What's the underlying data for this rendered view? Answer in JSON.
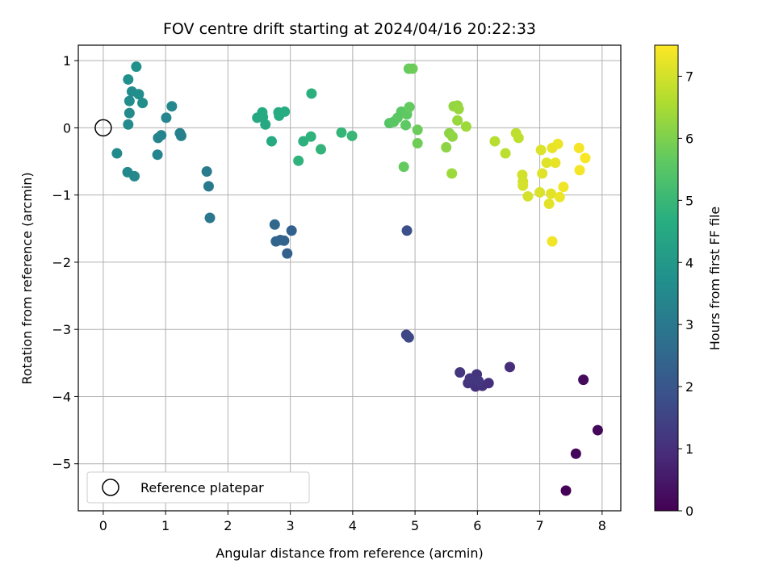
{
  "chart_data": {
    "type": "scatter",
    "title": "FOV centre drift starting at 2024/04/16 20:22:33",
    "xlabel": "Angular distance from reference (arcmin)",
    "ylabel": "Rotation from reference (arcmin)",
    "xlim": [
      -0.4,
      8.3
    ],
    "ylim": [
      -5.7,
      1.23
    ],
    "xticks": [
      0,
      1,
      2,
      3,
      4,
      5,
      6,
      7,
      8
    ],
    "yticks": [
      1,
      0,
      -1,
      -2,
      -3,
      -4,
      -5
    ],
    "xtick_labels": [
      "0",
      "1",
      "2",
      "3",
      "4",
      "5",
      "6",
      "7",
      "8"
    ],
    "ytick_labels": [
      "1",
      "0",
      "−1",
      "−2",
      "−3",
      "−4",
      "−5"
    ],
    "grid": true,
    "legend": {
      "position": "lower-left",
      "entries": [
        {
          "label": "Reference platepar",
          "marker": "open-circle",
          "x": 0,
          "y": 0
        }
      ]
    },
    "colorbar": {
      "label": "Hours from first FF file",
      "colormap": "viridis",
      "range": [
        0,
        7.5
      ],
      "ticks": [
        0,
        1,
        2,
        3,
        4,
        5,
        6,
        7
      ],
      "tick_labels": [
        "0",
        "1",
        "2",
        "3",
        "4",
        "5",
        "6",
        "7"
      ]
    },
    "points": [
      {
        "x": 7.42,
        "y": -5.4,
        "c": 0.05
      },
      {
        "x": 7.58,
        "y": -4.85,
        "c": 0.1
      },
      {
        "x": 7.93,
        "y": -4.5,
        "c": 0.15
      },
      {
        "x": 7.7,
        "y": -3.75,
        "c": 0.2
      },
      {
        "x": 6.52,
        "y": -3.56,
        "c": 1.0
      },
      {
        "x": 6.18,
        "y": -3.8,
        "c": 1.05
      },
      {
        "x": 6.08,
        "y": -3.84,
        "c": 1.1
      },
      {
        "x": 5.97,
        "y": -3.85,
        "c": 1.1
      },
      {
        "x": 5.99,
        "y": -3.67,
        "c": 1.15
      },
      {
        "x": 5.85,
        "y": -3.8,
        "c": 1.15
      },
      {
        "x": 5.88,
        "y": -3.73,
        "c": 1.2
      },
      {
        "x": 5.72,
        "y": -3.64,
        "c": 1.2
      },
      {
        "x": 6.02,
        "y": -3.77,
        "c": 1.25
      },
      {
        "x": 4.86,
        "y": -3.08,
        "c": 1.6
      },
      {
        "x": 4.9,
        "y": -3.12,
        "c": 1.65
      },
      {
        "x": 4.87,
        "y": -1.53,
        "c": 1.85
      },
      {
        "x": 2.95,
        "y": -1.87,
        "c": 2.3
      },
      {
        "x": 3.02,
        "y": -1.53,
        "c": 2.35
      },
      {
        "x": 2.9,
        "y": -1.68,
        "c": 2.4
      },
      {
        "x": 2.84,
        "y": -1.67,
        "c": 2.4
      },
      {
        "x": 2.77,
        "y": -1.69,
        "c": 2.45
      },
      {
        "x": 2.75,
        "y": -1.44,
        "c": 2.5
      },
      {
        "x": 1.71,
        "y": -1.34,
        "c": 3.0
      },
      {
        "x": 1.69,
        "y": -0.87,
        "c": 3.05
      },
      {
        "x": 1.66,
        "y": -0.65,
        "c": 3.1
      },
      {
        "x": 1.25,
        "y": -0.12,
        "c": 3.25
      },
      {
        "x": 1.23,
        "y": -0.08,
        "c": 3.3
      },
      {
        "x": 0.93,
        "y": -0.11,
        "c": 3.35
      },
      {
        "x": 0.88,
        "y": -0.15,
        "c": 3.4
      },
      {
        "x": 0.87,
        "y": -0.4,
        "c": 3.4
      },
      {
        "x": 1.01,
        "y": 0.15,
        "c": 3.45
      },
      {
        "x": 1.1,
        "y": 0.32,
        "c": 3.5
      },
      {
        "x": 0.5,
        "y": -0.72,
        "c": 3.5
      },
      {
        "x": 0.39,
        "y": -0.66,
        "c": 3.55
      },
      {
        "x": 0.22,
        "y": -0.38,
        "c": 3.55
      },
      {
        "x": 0.4,
        "y": 0.05,
        "c": 3.6
      },
      {
        "x": 0.42,
        "y": 0.22,
        "c": 3.6
      },
      {
        "x": 0.42,
        "y": 0.4,
        "c": 3.65
      },
      {
        "x": 0.46,
        "y": 0.54,
        "c": 3.65
      },
      {
        "x": 0.57,
        "y": 0.5,
        "c": 3.7
      },
      {
        "x": 0.63,
        "y": 0.37,
        "c": 3.7
      },
      {
        "x": 0.4,
        "y": 0.72,
        "c": 3.75
      },
      {
        "x": 0.53,
        "y": 0.91,
        "c": 3.8
      },
      {
        "x": 3.34,
        "y": 0.51,
        "c": 4.75
      },
      {
        "x": 3.21,
        "y": -0.2,
        "c": 4.8
      },
      {
        "x": 3.33,
        "y": -0.13,
        "c": 4.85
      },
      {
        "x": 3.13,
        "y": -0.49,
        "c": 4.85
      },
      {
        "x": 3.49,
        "y": -0.32,
        "c": 4.9
      },
      {
        "x": 3.82,
        "y": -0.07,
        "c": 4.95
      },
      {
        "x": 3.99,
        "y": -0.12,
        "c": 5.0
      },
      {
        "x": 2.91,
        "y": 0.24,
        "c": 4.7
      },
      {
        "x": 2.81,
        "y": 0.23,
        "c": 4.65
      },
      {
        "x": 2.82,
        "y": 0.18,
        "c": 4.65
      },
      {
        "x": 2.56,
        "y": 0.16,
        "c": 4.6
      },
      {
        "x": 2.55,
        "y": 0.23,
        "c": 4.6
      },
      {
        "x": 2.47,
        "y": 0.15,
        "c": 4.55
      },
      {
        "x": 2.6,
        "y": 0.05,
        "c": 4.55
      },
      {
        "x": 2.7,
        "y": -0.2,
        "c": 4.6
      },
      {
        "x": 4.59,
        "y": 0.07,
        "c": 5.5
      },
      {
        "x": 4.66,
        "y": 0.09,
        "c": 5.55
      },
      {
        "x": 4.72,
        "y": 0.15,
        "c": 5.6
      },
      {
        "x": 4.78,
        "y": 0.24,
        "c": 5.6
      },
      {
        "x": 4.85,
        "y": 0.04,
        "c": 5.65
      },
      {
        "x": 4.87,
        "y": 0.2,
        "c": 5.65
      },
      {
        "x": 4.91,
        "y": 0.31,
        "c": 5.7
      },
      {
        "x": 4.82,
        "y": -0.58,
        "c": 5.7
      },
      {
        "x": 4.9,
        "y": 0.88,
        "c": 5.75
      },
      {
        "x": 4.96,
        "y": 0.88,
        "c": 5.8
      },
      {
        "x": 5.04,
        "y": -0.03,
        "c": 5.8
      },
      {
        "x": 5.04,
        "y": -0.23,
        "c": 5.85
      },
      {
        "x": 5.5,
        "y": -0.29,
        "c": 6.2
      },
      {
        "x": 5.55,
        "y": -0.08,
        "c": 6.2
      },
      {
        "x": 5.6,
        "y": -0.13,
        "c": 6.25
      },
      {
        "x": 5.62,
        "y": 0.32,
        "c": 6.3
      },
      {
        "x": 5.68,
        "y": 0.33,
        "c": 6.3
      },
      {
        "x": 5.7,
        "y": 0.28,
        "c": 6.35
      },
      {
        "x": 5.68,
        "y": 0.11,
        "c": 6.35
      },
      {
        "x": 5.59,
        "y": -0.68,
        "c": 6.4
      },
      {
        "x": 5.82,
        "y": 0.02,
        "c": 6.4
      },
      {
        "x": 6.28,
        "y": -0.2,
        "c": 6.7
      },
      {
        "x": 6.45,
        "y": -0.38,
        "c": 6.75
      },
      {
        "x": 6.62,
        "y": -0.08,
        "c": 6.8
      },
      {
        "x": 6.66,
        "y": -0.15,
        "c": 6.8
      },
      {
        "x": 6.72,
        "y": -0.7,
        "c": 7.0
      },
      {
        "x": 6.73,
        "y": -0.8,
        "c": 7.0
      },
      {
        "x": 6.73,
        "y": -0.86,
        "c": 7.05
      },
      {
        "x": 6.81,
        "y": -1.02,
        "c": 7.05
      },
      {
        "x": 7.0,
        "y": -0.96,
        "c": 7.1
      },
      {
        "x": 7.02,
        "y": -0.33,
        "c": 7.1
      },
      {
        "x": 7.04,
        "y": -0.68,
        "c": 7.15
      },
      {
        "x": 7.11,
        "y": -0.52,
        "c": 7.15
      },
      {
        "x": 7.15,
        "y": -1.13,
        "c": 7.2
      },
      {
        "x": 7.18,
        "y": -0.98,
        "c": 7.2
      },
      {
        "x": 7.2,
        "y": -0.3,
        "c": 7.25
      },
      {
        "x": 7.25,
        "y": -0.52,
        "c": 7.25
      },
      {
        "x": 7.29,
        "y": -0.24,
        "c": 7.3
      },
      {
        "x": 7.32,
        "y": -1.03,
        "c": 7.3
      },
      {
        "x": 7.38,
        "y": -0.88,
        "c": 7.35
      },
      {
        "x": 7.2,
        "y": -1.69,
        "c": 7.35
      },
      {
        "x": 7.63,
        "y": -0.3,
        "c": 7.4
      },
      {
        "x": 7.64,
        "y": -0.63,
        "c": 7.4
      },
      {
        "x": 7.73,
        "y": -0.45,
        "c": 7.45
      }
    ]
  }
}
